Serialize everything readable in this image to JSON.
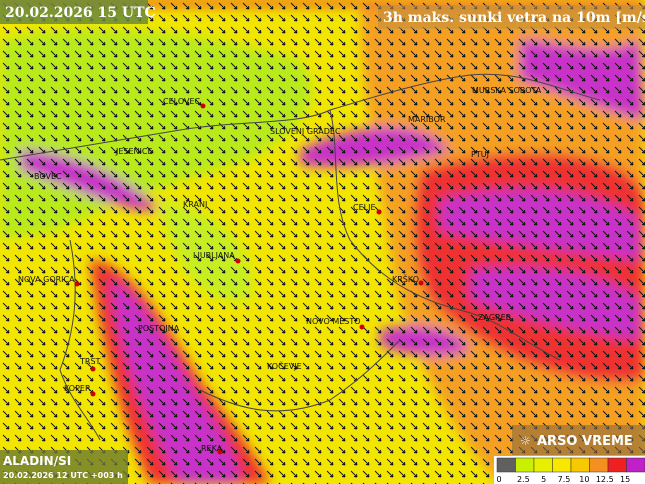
{
  "header": {
    "valid_time": "20.02.2026 15 UTC",
    "title": "3h maks. sunki vetra na 10m [m/s]"
  },
  "cities": [
    "CELOVEC",
    "SLOVENJ GRADEC",
    "MARIBOR",
    "MURSKA SOBOTA",
    "JESENICE",
    "BOVEC",
    "PTUJ",
    "KRANJ",
    "CELJE",
    "LJUBLJANA",
    "NOVA GORICA",
    "KRŠKO",
    "ZAGREB",
    "POSTOJNA",
    "NOVO MESTO",
    "TRST",
    "KOČEVJE",
    "KOPER",
    "REKA"
  ],
  "footer": {
    "model": "ALADIN/SI",
    "run": "20.02.2026 12 UTC +003 h",
    "brand": "ARSO VREME"
  },
  "legend": {
    "ticks": [
      0,
      2.5,
      5,
      7.5,
      10,
      12.5,
      15
    ]
  }
}
